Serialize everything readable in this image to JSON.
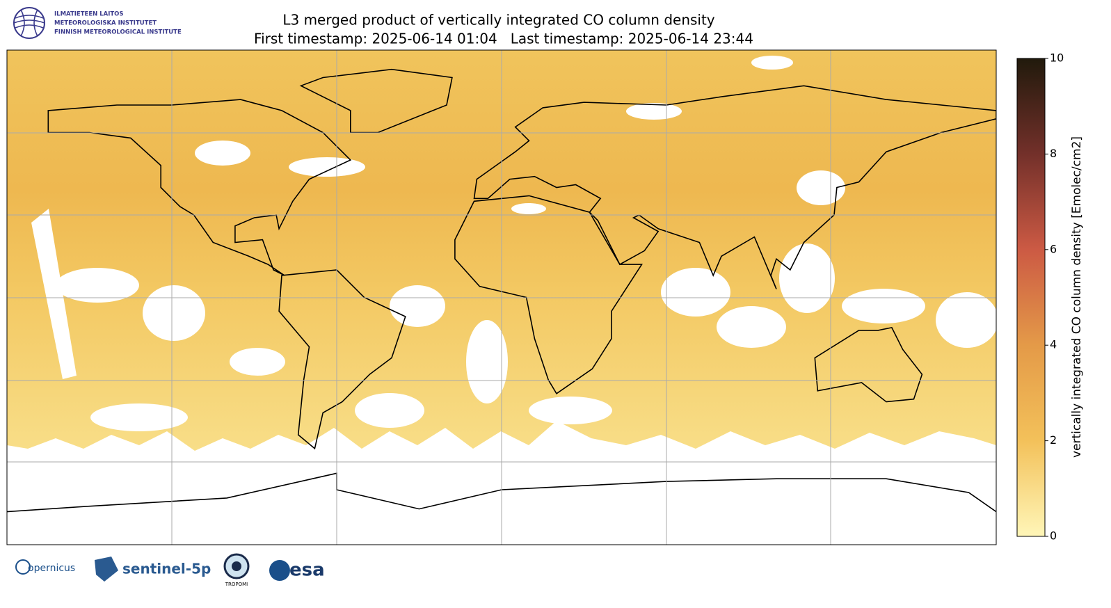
{
  "header": {
    "institute_lines": [
      "ILMATIETEEN LAITOS",
      "METEOROLOGISKA INSTITUTET",
      "FINNISH METEOROLOGICAL INSTITUTE"
    ],
    "title": "L3 merged product of vertically integrated CO column density",
    "subtitle": "First timestamp: 2025-06-14 01:04   Last timestamp: 2025-06-14 23:44"
  },
  "colorbar": {
    "label": "vertically integrated CO column density [Emolec/cm2]",
    "lim": [
      0,
      10
    ],
    "ticks": [
      0,
      2,
      4,
      6,
      8,
      10
    ]
  },
  "footer": {
    "logos": [
      "opernicus",
      "sentinel-5p",
      "TROPOMI",
      "esa"
    ]
  }
}
